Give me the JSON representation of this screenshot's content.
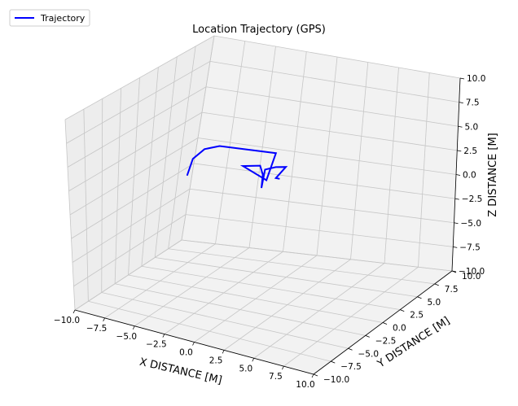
{
  "chart_data": {
    "type": "line",
    "projection": "3d",
    "title": "Location Trajectory (GPS)",
    "xlabel": "X DISTANCE [M]",
    "ylabel": "Y DISTANCE [M]",
    "zlabel": "Z DISTANCE [M]",
    "xlim": [
      -10,
      10
    ],
    "ylim": [
      -10,
      10
    ],
    "zlim": [
      -10,
      10
    ],
    "xticks": [
      -10,
      -7.5,
      -5,
      -2.5,
      0,
      2.5,
      5,
      7.5,
      10
    ],
    "yticks": [
      -10,
      -7.5,
      -5,
      -2.5,
      0,
      2.5,
      5,
      7.5,
      10
    ],
    "zticks": [
      -10,
      -7.5,
      -5,
      -2.5,
      0,
      2.5,
      5,
      7.5,
      10
    ],
    "xtick_labels": [
      "−10.0",
      "−7.5",
      "−5.0",
      "−2.5",
      "0.0",
      "2.5",
      "5.0",
      "7.5",
      "10.0"
    ],
    "ytick_labels": [
      "−10.0",
      "−7.5",
      "−5.0",
      "−2.5",
      "0.0",
      "2.5",
      "5.0",
      "7.5",
      "10.0"
    ],
    "ztick_labels": [
      "−10.0",
      "−7.5",
      "−5.0",
      "−2.5",
      "0.0",
      "2.5",
      "5.0",
      "7.5",
      "10.0"
    ],
    "grid": true,
    "legend_position": "top-left",
    "series": [
      {
        "name": "Trajectory",
        "color": "#0000ff",
        "x": [
          -7.3,
          -7.2,
          -6.5,
          -5.3,
          -0.6,
          -0.5,
          -2.4,
          -0.9,
          -0.6,
          -0.7,
          -0.4,
          0.7,
          1.6,
          1.8,
          2.1
        ],
        "y": [
          3.0,
          3.5,
          3.8,
          3.7,
          3.2,
          1.8,
          1.8,
          1.5,
          1.4,
          1.5,
          1.3,
          0.8,
          0.6,
          -1.2,
          -1.2
        ],
        "z": [
          -0.5,
          1.0,
          2.0,
          2.6,
          3.1,
          1.0,
          2.0,
          2.5,
          1.7,
          0.3,
          2.3,
          3.0,
          3.3,
          3.0,
          3.0
        ]
      }
    ]
  }
}
